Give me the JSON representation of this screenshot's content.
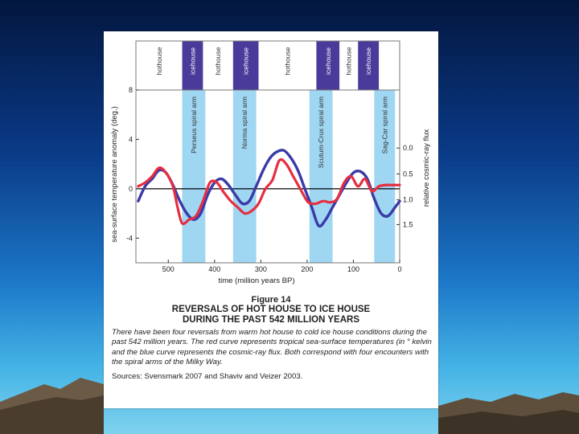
{
  "chart_data": {
    "type": "line",
    "xlabel": "time (million years BP)",
    "ylabel": "sea-surface temperature anomaly (deg.)",
    "y2label": "relative cosmic-ray flux",
    "xlim": [
      570,
      0
    ],
    "ylim": [
      -6,
      8
    ],
    "x_ticks": [
      500,
      400,
      300,
      200,
      100,
      0
    ],
    "y_ticks": [
      8,
      4,
      0,
      -4
    ],
    "y2_ticks": [
      {
        "label": "0.0",
        "y": 3.3
      },
      {
        "label": "0.5",
        "y": 1.2
      },
      {
        "label": "1.0",
        "y": -0.9
      },
      {
        "label": "1.5",
        "y": -2.9
      }
    ],
    "climate_bands": [
      {
        "label": "hothouse",
        "start": 570,
        "end": 470,
        "kind": "hothouse"
      },
      {
        "label": "icehouse",
        "start": 470,
        "end": 425,
        "kind": "icehouse"
      },
      {
        "label": "hothouse",
        "start": 425,
        "end": 360,
        "kind": "hothouse"
      },
      {
        "label": "icehouse",
        "start": 360,
        "end": 305,
        "kind": "icehouse"
      },
      {
        "label": "hothouse",
        "start": 305,
        "end": 180,
        "kind": "hothouse"
      },
      {
        "label": "icehouse",
        "start": 180,
        "end": 130,
        "kind": "icehouse"
      },
      {
        "label": "hothouse",
        "start": 130,
        "end": 90,
        "kind": "hothouse"
      },
      {
        "label": "icehouse",
        "start": 90,
        "end": 45,
        "kind": "icehouse"
      }
    ],
    "spiral_arms": [
      {
        "label": "Perseus spiral arm",
        "start": 470,
        "end": 420
      },
      {
        "label": "Norma spiral arm",
        "start": 360,
        "end": 310
      },
      {
        "label": "Scutum-Crux spiral arm",
        "start": 195,
        "end": 145
      },
      {
        "label": "Sag-Car spiral arm",
        "start": 55,
        "end": 10
      }
    ],
    "series": [
      {
        "color": "#3a3aa8",
        "x": [
          565,
          550,
          535,
          520,
          505,
          490,
          475,
          460,
          445,
          430,
          415,
          400,
          385,
          370,
          355,
          340,
          325,
          310,
          295,
          280,
          265,
          250,
          235,
          220,
          205,
          190,
          175,
          160,
          145,
          130,
          115,
          100,
          85,
          70,
          55,
          40,
          25,
          10,
          0
        ],
        "y": [
          -1.0,
          0.2,
          0.8,
          1.5,
          1.3,
          0.3,
          -1.0,
          -2.0,
          -2.5,
          -2.0,
          -0.5,
          0.5,
          0.8,
          0.3,
          -0.5,
          -1.2,
          -1.0,
          0.2,
          1.5,
          2.5,
          3.0,
          3.1,
          2.5,
          1.5,
          0.0,
          -1.5,
          -3.0,
          -2.5,
          -1.5,
          -0.5,
          0.5,
          1.3,
          1.4,
          0.8,
          -0.8,
          -2.0,
          -2.2,
          -1.5,
          -1.0
        ]
      },
      {
        "color": "#e62e40",
        "x": [
          565,
          550,
          535,
          520,
          505,
          490,
          480,
          470,
          455,
          440,
          425,
          410,
          395,
          380,
          365,
          350,
          335,
          320,
          305,
          290,
          275,
          260,
          245,
          230,
          215,
          200,
          190,
          180,
          165,
          150,
          135,
          120,
          105,
          90,
          75,
          60,
          45,
          30,
          15,
          0
        ],
        "y": [
          0.2,
          0.5,
          1.0,
          1.7,
          1.3,
          0.2,
          -1.5,
          -2.8,
          -2.5,
          -2.2,
          -1.0,
          0.5,
          0.5,
          -0.3,
          -1.0,
          -1.5,
          -2.0,
          -1.8,
          -1.2,
          0.0,
          0.7,
          2.3,
          2.0,
          1.0,
          0.0,
          -1.0,
          -1.2,
          -1.2,
          -1.0,
          -1.1,
          -0.8,
          0.5,
          1.0,
          0.2,
          0.8,
          -0.2,
          0.2,
          0.3,
          0.3,
          0.3
        ]
      }
    ]
  },
  "caption": {
    "figure_number": "Figure 14",
    "title_line1": "REVERSALS OF HOT HOUSE TO ICE HOUSE",
    "title_line2": "DURING THE PAST 542 MILLION YEARS",
    "description": "There have been four reversals from warm hot house to cold ice house conditions during the past 542 million years. The red curve represents tropical sea-surface temperatures (in ° kelvin and the blue curve represents the cosmic-ray flux. Both correspond with four encounters with the spiral arms of the Milky Way.",
    "sources": "Sources: Svensmark 2007 and Shaviv and Veizer 2003."
  }
}
